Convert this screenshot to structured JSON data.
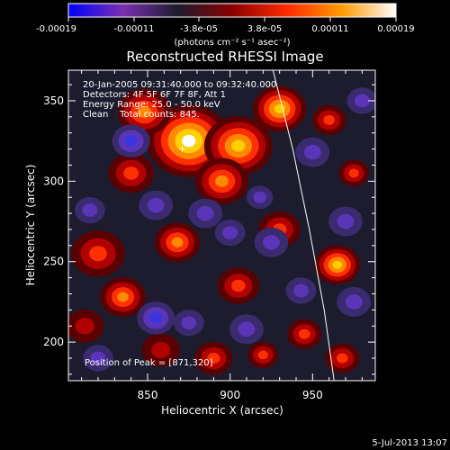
{
  "chart_data": {
    "type": "heatmap",
    "title": "Reconstructed RHESSI Image",
    "xlabel": "Heliocentric X (arcsec)",
    "ylabel": "Heliocentric Y (arcsec)",
    "xlim": [
      802,
      988
    ],
    "ylim": [
      176,
      369
    ],
    "x_ticks": [
      850,
      900,
      950
    ],
    "y_ticks": [
      200,
      250,
      300,
      350
    ],
    "colorbar": {
      "ticks": [
        "-0.00019",
        "-0.00011",
        "-3.8e-05",
        "3.8e-05",
        "0.00011",
        "0.00019"
      ],
      "unit": "(photons cm⁻² s⁻¹ asec⁻²)",
      "range": [
        -0.00019,
        0.00019
      ],
      "colors": [
        "#0000ff",
        "#7a2fb0",
        "#1c1c2e",
        "#8a0000",
        "#ff2a00",
        "#ff9a00",
        "#ffffff"
      ]
    },
    "info_lines": [
      "20-Jan-2005 09:31:40.000 to 09:32:40.000",
      "Detectors: 4F 5F 6F 7F 8F, Att 1",
      "Energy Range: 25.0 - 50.0 keV",
      "Clean    Total counts: 845."
    ],
    "peak_label": "Position of Peak = [871,320]",
    "peak": [
      871,
      320
    ],
    "limb_curve": [
      [
        926,
        369
      ],
      [
        938,
        320
      ],
      [
        948,
        270
      ],
      [
        957,
        220
      ],
      [
        963,
        176
      ]
    ],
    "blobs": [
      {
        "x": 875,
        "y": 325,
        "r": 22,
        "v": 1.0
      },
      {
        "x": 905,
        "y": 322,
        "r": 18,
        "v": 0.9
      },
      {
        "x": 848,
        "y": 343,
        "r": 14,
        "v": 0.7
      },
      {
        "x": 930,
        "y": 345,
        "r": 14,
        "v": 0.8
      },
      {
        "x": 840,
        "y": 305,
        "r": 12,
        "v": 0.55
      },
      {
        "x": 895,
        "y": 300,
        "r": 14,
        "v": 0.6
      },
      {
        "x": 868,
        "y": 262,
        "r": 12,
        "v": 0.6
      },
      {
        "x": 905,
        "y": 235,
        "r": 11,
        "v": 0.55
      },
      {
        "x": 930,
        "y": 270,
        "r": 11,
        "v": 0.5
      },
      {
        "x": 820,
        "y": 255,
        "r": 14,
        "v": 0.55
      },
      {
        "x": 835,
        "y": 228,
        "r": 12,
        "v": 0.7
      },
      {
        "x": 812,
        "y": 210,
        "r": 10,
        "v": 0.4
      },
      {
        "x": 965,
        "y": 248,
        "r": 12,
        "v": 0.75
      },
      {
        "x": 975,
        "y": 305,
        "r": 8,
        "v": 0.45
      },
      {
        "x": 960,
        "y": 338,
        "r": 9,
        "v": 0.45
      },
      {
        "x": 945,
        "y": 205,
        "r": 9,
        "v": 0.45
      },
      {
        "x": 968,
        "y": 190,
        "r": 9,
        "v": 0.5
      },
      {
        "x": 890,
        "y": 190,
        "r": 10,
        "v": 0.5
      },
      {
        "x": 920,
        "y": 192,
        "r": 8,
        "v": 0.45
      },
      {
        "x": 858,
        "y": 195,
        "r": 10,
        "v": 0.4
      },
      {
        "x": 840,
        "y": 325,
        "r": 10,
        "v": -0.7
      },
      {
        "x": 885,
        "y": 280,
        "r": 9,
        "v": -0.6
      },
      {
        "x": 855,
        "y": 285,
        "r": 9,
        "v": -0.6
      },
      {
        "x": 855,
        "y": 215,
        "r": 10,
        "v": -0.85
      },
      {
        "x": 875,
        "y": 212,
        "r": 8,
        "v": -0.5
      },
      {
        "x": 910,
        "y": 208,
        "r": 9,
        "v": -0.6
      },
      {
        "x": 925,
        "y": 262,
        "r": 9,
        "v": -0.6
      },
      {
        "x": 900,
        "y": 268,
        "r": 8,
        "v": -0.5
      },
      {
        "x": 950,
        "y": 318,
        "r": 9,
        "v": -0.6
      },
      {
        "x": 970,
        "y": 275,
        "r": 9,
        "v": -0.5
      },
      {
        "x": 975,
        "y": 225,
        "r": 9,
        "v": -0.6
      },
      {
        "x": 943,
        "y": 232,
        "r": 8,
        "v": -0.6
      },
      {
        "x": 815,
        "y": 282,
        "r": 8,
        "v": -0.4
      },
      {
        "x": 820,
        "y": 190,
        "r": 8,
        "v": -0.45
      },
      {
        "x": 980,
        "y": 350,
        "r": 8,
        "v": -0.5
      },
      {
        "x": 918,
        "y": 290,
        "r": 7,
        "v": -0.45
      }
    ]
  },
  "footer": {
    "date": "5-Jul-2013 13:07"
  }
}
